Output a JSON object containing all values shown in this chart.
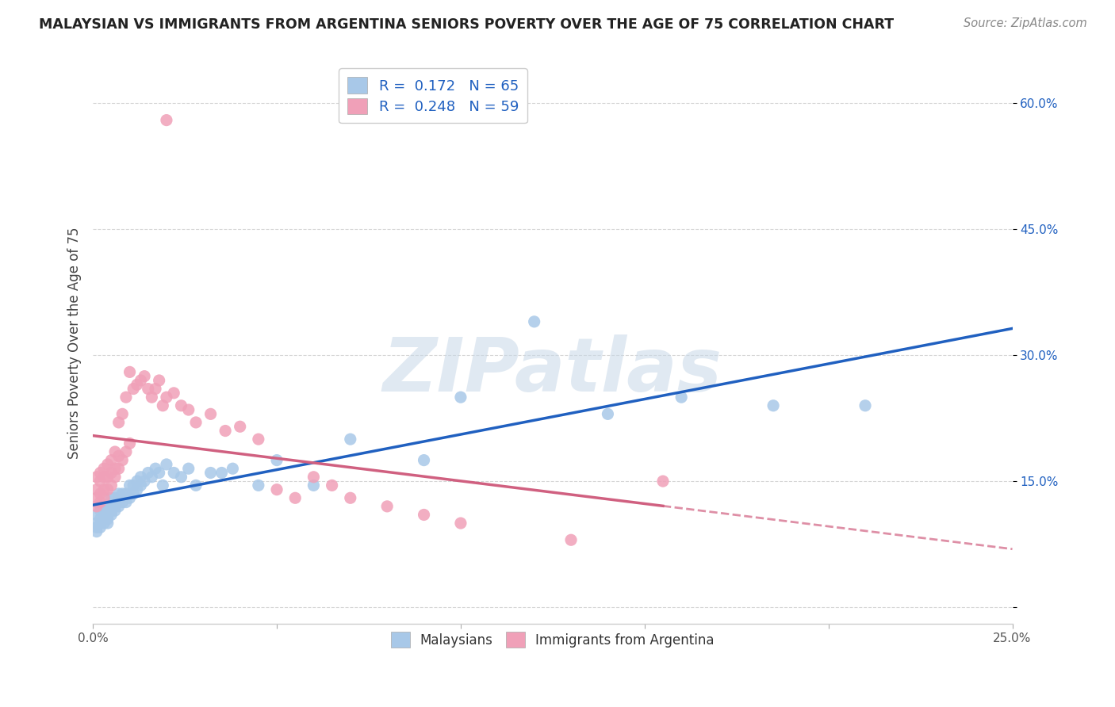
{
  "title": "MALAYSIAN VS IMMIGRANTS FROM ARGENTINA SENIORS POVERTY OVER THE AGE OF 75 CORRELATION CHART",
  "source": "Source: ZipAtlas.com",
  "ylabel": "Seniors Poverty Over the Age of 75",
  "xlim": [
    0.0,
    0.25
  ],
  "ylim": [
    -0.02,
    0.65
  ],
  "xticks": [
    0.0,
    0.05,
    0.1,
    0.15,
    0.2,
    0.25
  ],
  "xticklabels": [
    "0.0%",
    "",
    "",
    "",
    "",
    "25.0%"
  ],
  "yticks": [
    0.0,
    0.15,
    0.3,
    0.45,
    0.6
  ],
  "yticklabels": [
    "",
    "15.0%",
    "30.0%",
    "45.0%",
    "60.0%"
  ],
  "malaysian_R": 0.172,
  "malaysian_N": 65,
  "argentina_R": 0.248,
  "argentina_N": 59,
  "dot_color_malaysian": "#a8c8e8",
  "dot_color_argentina": "#f0a0b8",
  "line_color_malaysian": "#2060c0",
  "line_color_argentina": "#d06080",
  "watermark": "ZIPatlas",
  "legend_malaysians": "Malaysians",
  "legend_argentina": "Immigrants from Argentina",
  "malaysian_x": [
    0.001,
    0.001,
    0.001,
    0.001,
    0.002,
    0.002,
    0.002,
    0.002,
    0.002,
    0.003,
    0.003,
    0.003,
    0.003,
    0.003,
    0.004,
    0.004,
    0.004,
    0.004,
    0.005,
    0.005,
    0.005,
    0.005,
    0.006,
    0.006,
    0.006,
    0.007,
    0.007,
    0.007,
    0.008,
    0.008,
    0.009,
    0.009,
    0.01,
    0.01,
    0.011,
    0.011,
    0.012,
    0.012,
    0.013,
    0.013,
    0.014,
    0.015,
    0.016,
    0.017,
    0.018,
    0.019,
    0.02,
    0.022,
    0.024,
    0.026,
    0.028,
    0.032,
    0.035,
    0.038,
    0.045,
    0.05,
    0.06,
    0.07,
    0.09,
    0.1,
    0.12,
    0.14,
    0.16,
    0.185,
    0.21
  ],
  "malaysian_y": [
    0.09,
    0.095,
    0.1,
    0.11,
    0.095,
    0.1,
    0.105,
    0.115,
    0.12,
    0.1,
    0.105,
    0.11,
    0.115,
    0.12,
    0.1,
    0.105,
    0.11,
    0.12,
    0.11,
    0.115,
    0.12,
    0.13,
    0.115,
    0.12,
    0.13,
    0.12,
    0.125,
    0.135,
    0.125,
    0.135,
    0.125,
    0.135,
    0.13,
    0.145,
    0.135,
    0.145,
    0.14,
    0.15,
    0.145,
    0.155,
    0.15,
    0.16,
    0.155,
    0.165,
    0.16,
    0.145,
    0.17,
    0.16,
    0.155,
    0.165,
    0.145,
    0.16,
    0.16,
    0.165,
    0.145,
    0.175,
    0.145,
    0.2,
    0.175,
    0.25,
    0.34,
    0.23,
    0.25,
    0.24,
    0.24
  ],
  "argentina_x": [
    0.001,
    0.001,
    0.001,
    0.001,
    0.002,
    0.002,
    0.002,
    0.002,
    0.003,
    0.003,
    0.003,
    0.003,
    0.004,
    0.004,
    0.004,
    0.005,
    0.005,
    0.005,
    0.006,
    0.006,
    0.006,
    0.007,
    0.007,
    0.007,
    0.008,
    0.008,
    0.009,
    0.009,
    0.01,
    0.01,
    0.011,
    0.012,
    0.013,
    0.014,
    0.015,
    0.016,
    0.017,
    0.018,
    0.019,
    0.02,
    0.022,
    0.024,
    0.026,
    0.028,
    0.032,
    0.036,
    0.04,
    0.045,
    0.05,
    0.055,
    0.06,
    0.065,
    0.07,
    0.08,
    0.09,
    0.1,
    0.13,
    0.155,
    0.02
  ],
  "argentina_y": [
    0.12,
    0.13,
    0.14,
    0.155,
    0.125,
    0.135,
    0.15,
    0.16,
    0.13,
    0.14,
    0.155,
    0.165,
    0.14,
    0.155,
    0.17,
    0.145,
    0.16,
    0.175,
    0.155,
    0.165,
    0.185,
    0.165,
    0.18,
    0.22,
    0.175,
    0.23,
    0.185,
    0.25,
    0.195,
    0.28,
    0.26,
    0.265,
    0.27,
    0.275,
    0.26,
    0.25,
    0.26,
    0.27,
    0.24,
    0.25,
    0.255,
    0.24,
    0.235,
    0.22,
    0.23,
    0.21,
    0.215,
    0.2,
    0.14,
    0.13,
    0.155,
    0.145,
    0.13,
    0.12,
    0.11,
    0.1,
    0.08,
    0.15,
    0.58
  ]
}
